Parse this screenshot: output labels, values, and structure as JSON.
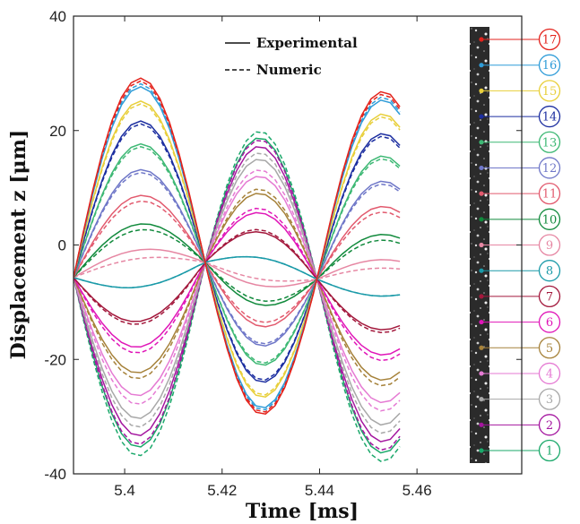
{
  "chart_data": {
    "type": "line",
    "title": "",
    "xlabel": "Time [ms]",
    "ylabel": "Displacement z [μm]",
    "xlim": [
      5.3895,
      5.4815
    ],
    "ylim": [
      -40,
      40
    ],
    "xticks": [
      5.4,
      5.42,
      5.44,
      5.46
    ],
    "xtick_labels": [
      "5.4",
      "5.42",
      "5.44",
      "5.46"
    ],
    "yticks": [
      -40,
      -20,
      0,
      20,
      40
    ],
    "ytick_labels": [
      "-40",
      "-20",
      "0",
      "20",
      "40"
    ],
    "grid": false,
    "legend": {
      "placement": "top-center",
      "entries": [
        {
          "label": "Experimental",
          "style": "solid"
        },
        {
          "label": "Numeric",
          "style": "dashed"
        }
      ]
    },
    "notes": {
      "nodes": [
        5.3895,
        5.4165,
        5.4395
      ],
      "node_values": [
        -5.7,
        -3.0,
        -6.0
      ],
      "peak_times": [
        5.4035,
        5.428,
        5.4535
      ]
    },
    "series": [
      {
        "name": "1",
        "color": "#1aa86a",
        "amp_exp": -31.0,
        "amp_num": -32.5
      },
      {
        "name": "2",
        "color": "#a4169f",
        "amp_exp": -29.0,
        "amp_num": -30.5
      },
      {
        "name": "3",
        "color": "#a8a8a8",
        "amp_exp": -26.0,
        "amp_num": -27.5
      },
      {
        "name": "4",
        "color": "#e57ad3",
        "amp_exp": -22.0,
        "amp_num": -23.5
      },
      {
        "name": "5",
        "color": "#a6823a",
        "amp_exp": -18.0,
        "amp_num": -19.0
      },
      {
        "name": "6",
        "color": "#e016b8",
        "amp_exp": -13.5,
        "amp_num": -14.5
      },
      {
        "name": "7",
        "color": "#a3183c",
        "amp_exp": -9.0,
        "amp_num": -9.5
      },
      {
        "name": "8",
        "color": "#1a9aa8",
        "amp_exp": -3.0,
        "amp_num": -3.0
      },
      {
        "name": "9",
        "color": "#e687a3",
        "amp_exp": 3.5,
        "amp_num": 2.0
      },
      {
        "name": "10",
        "color": "#118a3c",
        "amp_exp": 8.0,
        "amp_num": 7.0
      },
      {
        "name": "11",
        "color": "#e25a6e",
        "amp_exp": 13.0,
        "amp_num": 12.0
      },
      {
        "name": "12",
        "color": "#6f77c8",
        "amp_exp": 17.5,
        "amp_num": 17.0
      },
      {
        "name": "13",
        "color": "#3db874",
        "amp_exp": 22.0,
        "amp_num": 21.5
      },
      {
        "name": "14",
        "color": "#1c2ea0",
        "amp_exp": 26.0,
        "amp_num": 25.5
      },
      {
        "name": "15",
        "color": "#e8cf3a",
        "amp_exp": 29.5,
        "amp_num": 29.0
      },
      {
        "name": "16",
        "color": "#2f9cd8",
        "amp_exp": 32.0,
        "amp_num": 32.5
      },
      {
        "name": "17",
        "color": "#e3231c",
        "amp_exp": 33.5,
        "amp_num": 33.0
      }
    ]
  }
}
